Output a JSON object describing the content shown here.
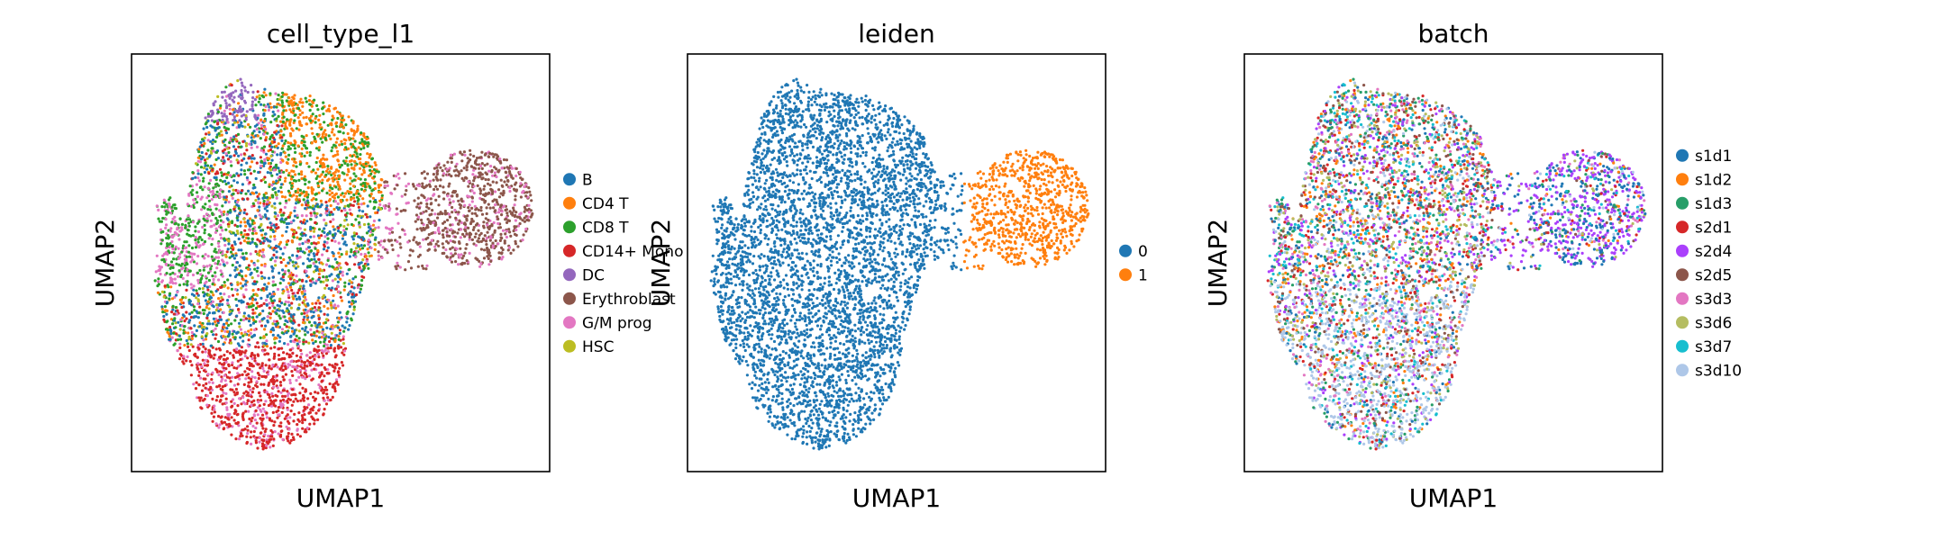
{
  "chart_data": [
    {
      "type": "scatter",
      "title": "cell_type_l1",
      "xlabel": "UMAP1",
      "ylabel": "UMAP2",
      "legend": {
        "placement": "right",
        "entries": [
          {
            "name": "B",
            "color": "#1f77b4"
          },
          {
            "name": "CD4 T",
            "color": "#ff7f0e"
          },
          {
            "name": "CD8 T",
            "color": "#2ca02c"
          },
          {
            "name": "CD14+ Mono",
            "color": "#d62728"
          },
          {
            "name": "DC",
            "color": "#9467bd"
          },
          {
            "name": "Erythroblast",
            "color": "#8c564b"
          },
          {
            "name": "G/M prog",
            "color": "#e377c2"
          },
          {
            "name": "HSC",
            "color": "#bcbd22"
          }
        ]
      }
    },
    {
      "type": "scatter",
      "title": "leiden",
      "xlabel": "UMAP1",
      "ylabel": "UMAP2",
      "legend": {
        "placement": "right",
        "entries": [
          {
            "name": "0",
            "color": "#1f77b4"
          },
          {
            "name": "1",
            "color": "#ff7f0e"
          }
        ]
      }
    },
    {
      "type": "scatter",
      "title": "batch",
      "xlabel": "UMAP1",
      "ylabel": "UMAP2",
      "legend": {
        "placement": "right",
        "entries": [
          {
            "name": "s1d1",
            "color": "#1f77b4"
          },
          {
            "name": "s1d2",
            "color": "#ff7f0e"
          },
          {
            "name": "s1d3",
            "color": "#279e68"
          },
          {
            "name": "s2d1",
            "color": "#d62728"
          },
          {
            "name": "s2d4",
            "color": "#aa40fc"
          },
          {
            "name": "s2d5",
            "color": "#8c564b"
          },
          {
            "name": "s3d3",
            "color": "#e377c2"
          },
          {
            "name": "s3d6",
            "color": "#b5bd61"
          },
          {
            "name": "s3d7",
            "color": "#17becf"
          },
          {
            "name": "s3d10",
            "color": "#aec7e8"
          }
        ]
      }
    }
  ]
}
